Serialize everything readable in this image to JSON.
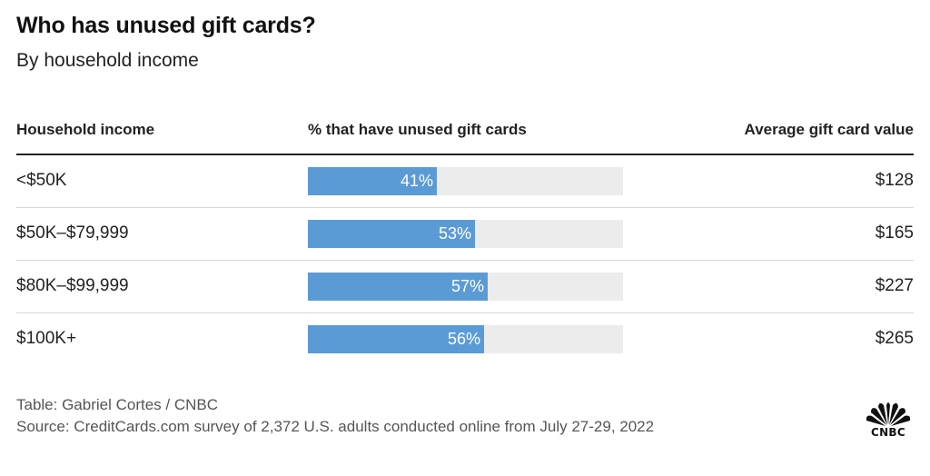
{
  "title": "Who has unused gift cards?",
  "subtitle": "By household income",
  "columns": {
    "income": "Household income",
    "pct": "% that have unused gift cards",
    "avg": "Average gift card value"
  },
  "rows": [
    {
      "income": "<$50K",
      "pct_label": "41%",
      "avg": "$128"
    },
    {
      "income": "$50K–$79,999",
      "pct_label": "53%",
      "avg": "$165"
    },
    {
      "income": "$80K–$99,999",
      "pct_label": "57%",
      "avg": "$227"
    },
    {
      "income": "$100K+",
      "pct_label": "56%",
      "avg": "$265"
    }
  ],
  "chart_data": {
    "type": "table",
    "title": "Who has unused gift cards?",
    "subtitle": "By household income",
    "columns": [
      "Household income",
      "% that have unused gift cards",
      "Average gift card value"
    ],
    "categories": [
      "<$50K",
      "$50K–$79,999",
      "$80K–$99,999",
      "$100K+"
    ],
    "series": [
      {
        "name": "% that have unused gift cards",
        "values": [
          41,
          53,
          57,
          56
        ]
      },
      {
        "name": "Average gift card value",
        "values": [
          128,
          165,
          227,
          265
        ]
      }
    ],
    "bar_max": 100,
    "bar_color": "#5b9bd5",
    "track_color": "#ececec"
  },
  "credit": "Table: Gabriel Cortes / CNBC",
  "source": "Source: CreditCards.com survey of 2,372 U.S. adults conducted online from July 27-29, 2022",
  "logo": {
    "text": "CNBC",
    "icon": "cnbc-peacock-icon",
    "feather_colors": [
      "#111111"
    ]
  }
}
